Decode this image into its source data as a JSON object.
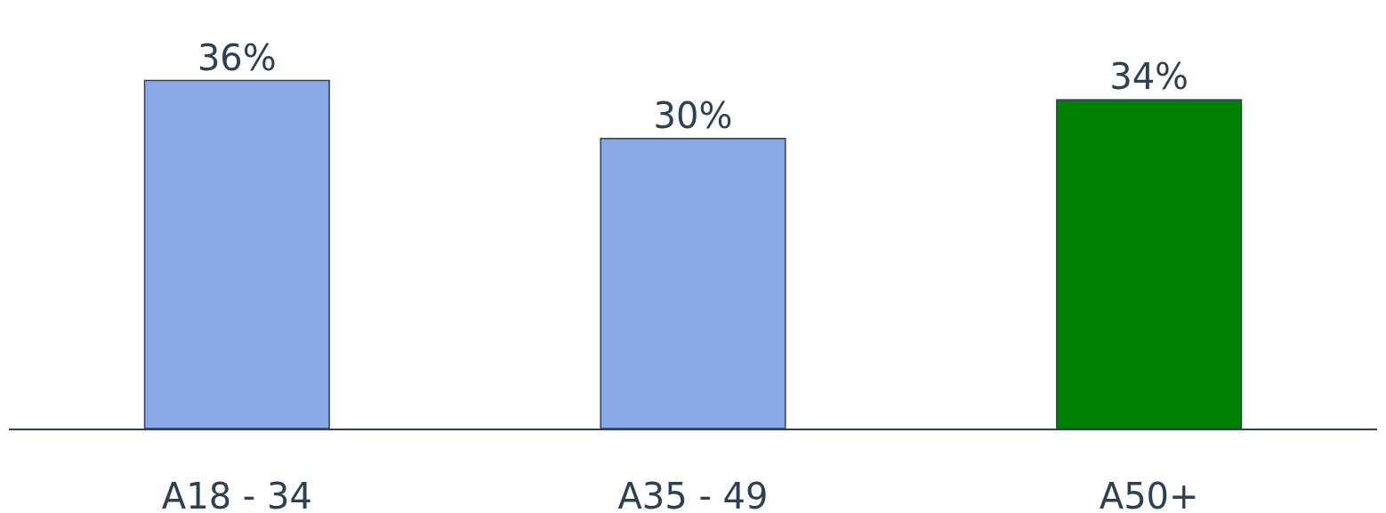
{
  "chart_data": {
    "type": "bar",
    "categories": [
      "A18 - 34",
      "A35 - 49",
      "A50+"
    ],
    "values": [
      36,
      30,
      34
    ],
    "colors": [
      "#8aa8e5",
      "#8aa8e5",
      "#008000"
    ],
    "value_labels": [
      "36%",
      "30%",
      "34%"
    ],
    "grid": false,
    "legend": false
  }
}
